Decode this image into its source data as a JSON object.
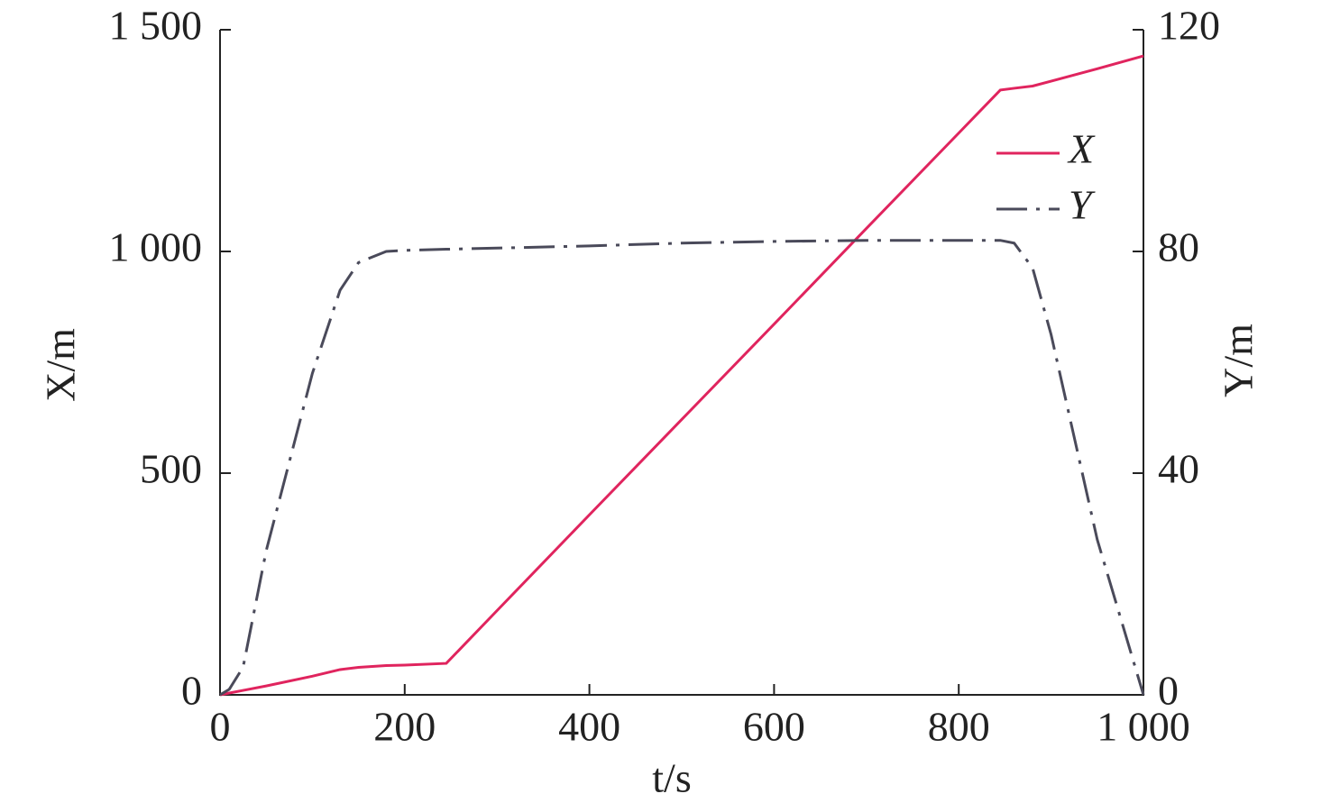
{
  "chart_data": {
    "type": "line",
    "x_label": "t/s",
    "y_label": "X/m",
    "y2_label": "Y/m",
    "x": [
      0,
      10,
      25,
      50,
      100,
      130,
      150,
      180,
      200,
      245,
      300,
      400,
      500,
      600,
      700,
      800,
      845,
      860,
      880,
      900,
      950,
      1000
    ],
    "series": [
      {
        "name": "X",
        "color": "#e0245e",
        "dash": "solid",
        "values": [
          0,
          4,
          10,
          20,
          42,
          57,
          62,
          66,
          67,
          71,
          190,
          406,
          621,
          836,
          1052,
          1267,
          1364,
          1368,
          1373,
          1384,
          1412,
          1441
        ]
      },
      {
        "name": "Y",
        "color": "#4a4a5a",
        "dash": "dashdot",
        "axis": "y2",
        "values": [
          0,
          1,
          5,
          26,
          58,
          73,
          78,
          80,
          80.2,
          80.4,
          80.6,
          81,
          81.5,
          81.8,
          82,
          82,
          82,
          81.5,
          77,
          65,
          28,
          0
        ]
      }
    ],
    "xlim": [
      0,
      1000
    ],
    "xticks": [
      0,
      200,
      400,
      600,
      800,
      {
        "value": 1000,
        "label": "1 000"
      }
    ],
    "ylim": [
      0,
      1500
    ],
    "yticks": [
      0,
      500,
      {
        "value": 1000,
        "label": "1 000"
      },
      {
        "value": 1500,
        "label": "1 500"
      }
    ],
    "y2lim": [
      0,
      120
    ],
    "y2ticks": [
      0,
      40,
      80,
      120
    ],
    "legend": "upper-right",
    "grid": false
  }
}
